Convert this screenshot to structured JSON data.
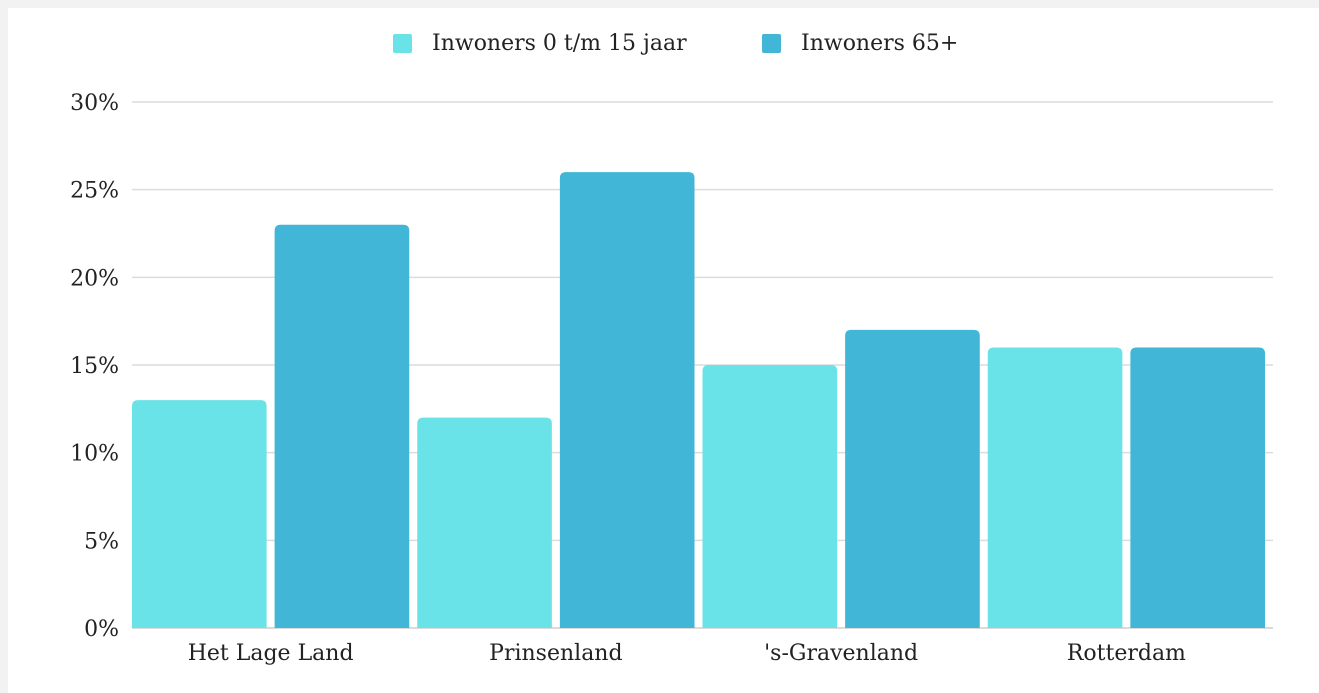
{
  "chart_data": {
    "type": "bar",
    "categories": [
      "Het Lage Land",
      "Prinsenland",
      "'s-Gravenland",
      "Rotterdam"
    ],
    "series": [
      {
        "name": "Inwoners 0 t/m 15 jaar",
        "values": [
          13,
          12,
          15,
          16
        ],
        "color": "#6ae3e8"
      },
      {
        "name": "Inwoners 65+",
        "values": [
          23,
          26,
          17,
          16
        ],
        "color": "#41b6d6"
      }
    ],
    "ylim": [
      0,
      30
    ],
    "yticks": [
      0,
      5,
      10,
      15,
      20,
      25,
      30
    ],
    "ytick_labels": [
      "0%",
      "5%",
      "10%",
      "15%",
      "20%",
      "25%",
      "30%"
    ],
    "grid": true,
    "legend_position": "top-center",
    "title": "",
    "xlabel": "",
    "ylabel": ""
  }
}
